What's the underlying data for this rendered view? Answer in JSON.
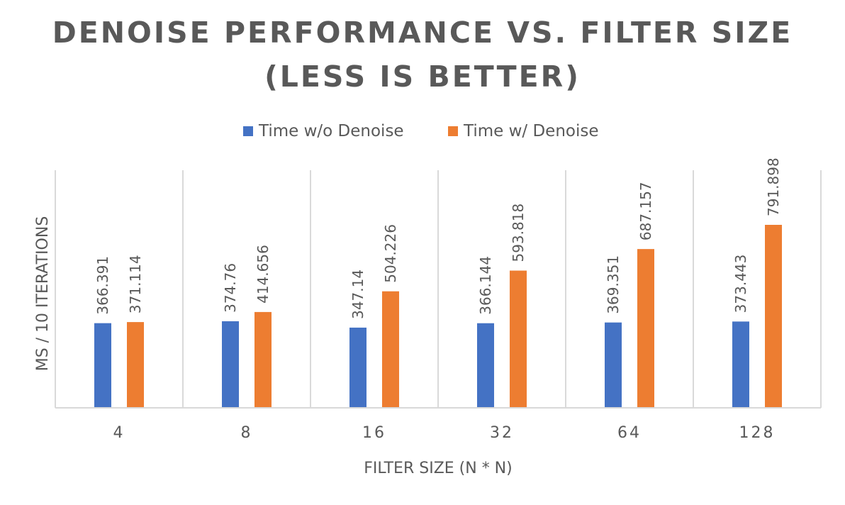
{
  "chart_data": {
    "type": "bar",
    "title_lines": [
      "DENOISE PERFORMANCE VS. FILTER SIZE",
      "(LESS IS BETTER)"
    ],
    "xlabel": "FILTER SIZE (N * N)",
    "ylabel": "MS / 10 ITERATIONS",
    "categories": [
      "4",
      "8",
      "16",
      "32",
      "64",
      "128"
    ],
    "series": [
      {
        "name": "Time w/o Denoise",
        "color": "#4472C4",
        "values": [
          366.391,
          374.76,
          347.14,
          366.144,
          369.351,
          373.443
        ],
        "labels": [
          "366.391",
          "374.76",
          "347.14",
          "366.144",
          "369.351",
          "373.443"
        ]
      },
      {
        "name": "Time w/ Denoise",
        "color": "#ED7D31",
        "values": [
          371.114,
          414.656,
          504.226,
          593.818,
          687.157,
          791.898
        ],
        "labels": [
          "371.114",
          "414.656",
          "504.226",
          "593.818",
          "687.157",
          "791.898"
        ]
      }
    ],
    "ylim": [
      0,
      800
    ],
    "legend_position": "top-center",
    "grid": "vertical category separators",
    "y_axis_ticks_shown": false
  }
}
